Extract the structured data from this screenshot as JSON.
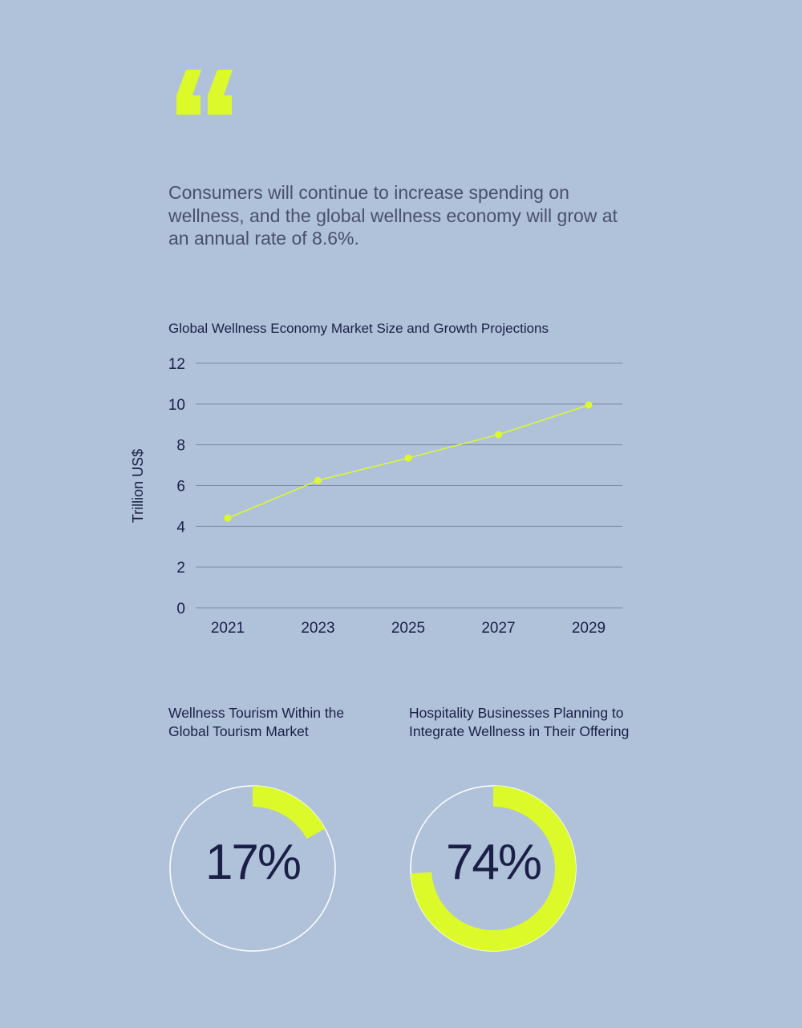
{
  "colors": {
    "background": "#b0c1da",
    "accent": "#dcfa2a",
    "text_dark": "#1b1f47",
    "text_muted": "#4a506c",
    "gridline": "#7f8aa6",
    "ring": "#ffffff"
  },
  "quote": {
    "icon": "quote-mark-icon",
    "text": "Consumers will continue to increase spending on wellness, and the global wellness economy will grow at an annual rate of 8.6%."
  },
  "chart_data": [
    {
      "type": "line",
      "title": "Global Wellness Economy Market Size and Growth Projections",
      "ylabel": "Trillion US$",
      "xlabel": "",
      "x": [
        "2021",
        "2023",
        "2025",
        "2027",
        "2029"
      ],
      "values": [
        4.4,
        6.25,
        7.35,
        8.5,
        9.95
      ],
      "ylim": [
        0,
        12
      ],
      "yticks": [
        0,
        2,
        4,
        6,
        8,
        10,
        12
      ],
      "grid": true
    },
    {
      "type": "pie",
      "title": "Wellness Tourism Within the Global Tourism Market",
      "value": 17,
      "value_label": "17%"
    },
    {
      "type": "pie",
      "title": "Hospitality Businesses Planning to Integrate Wellness in Their Offering",
      "value": 74,
      "value_label": "74%"
    }
  ]
}
